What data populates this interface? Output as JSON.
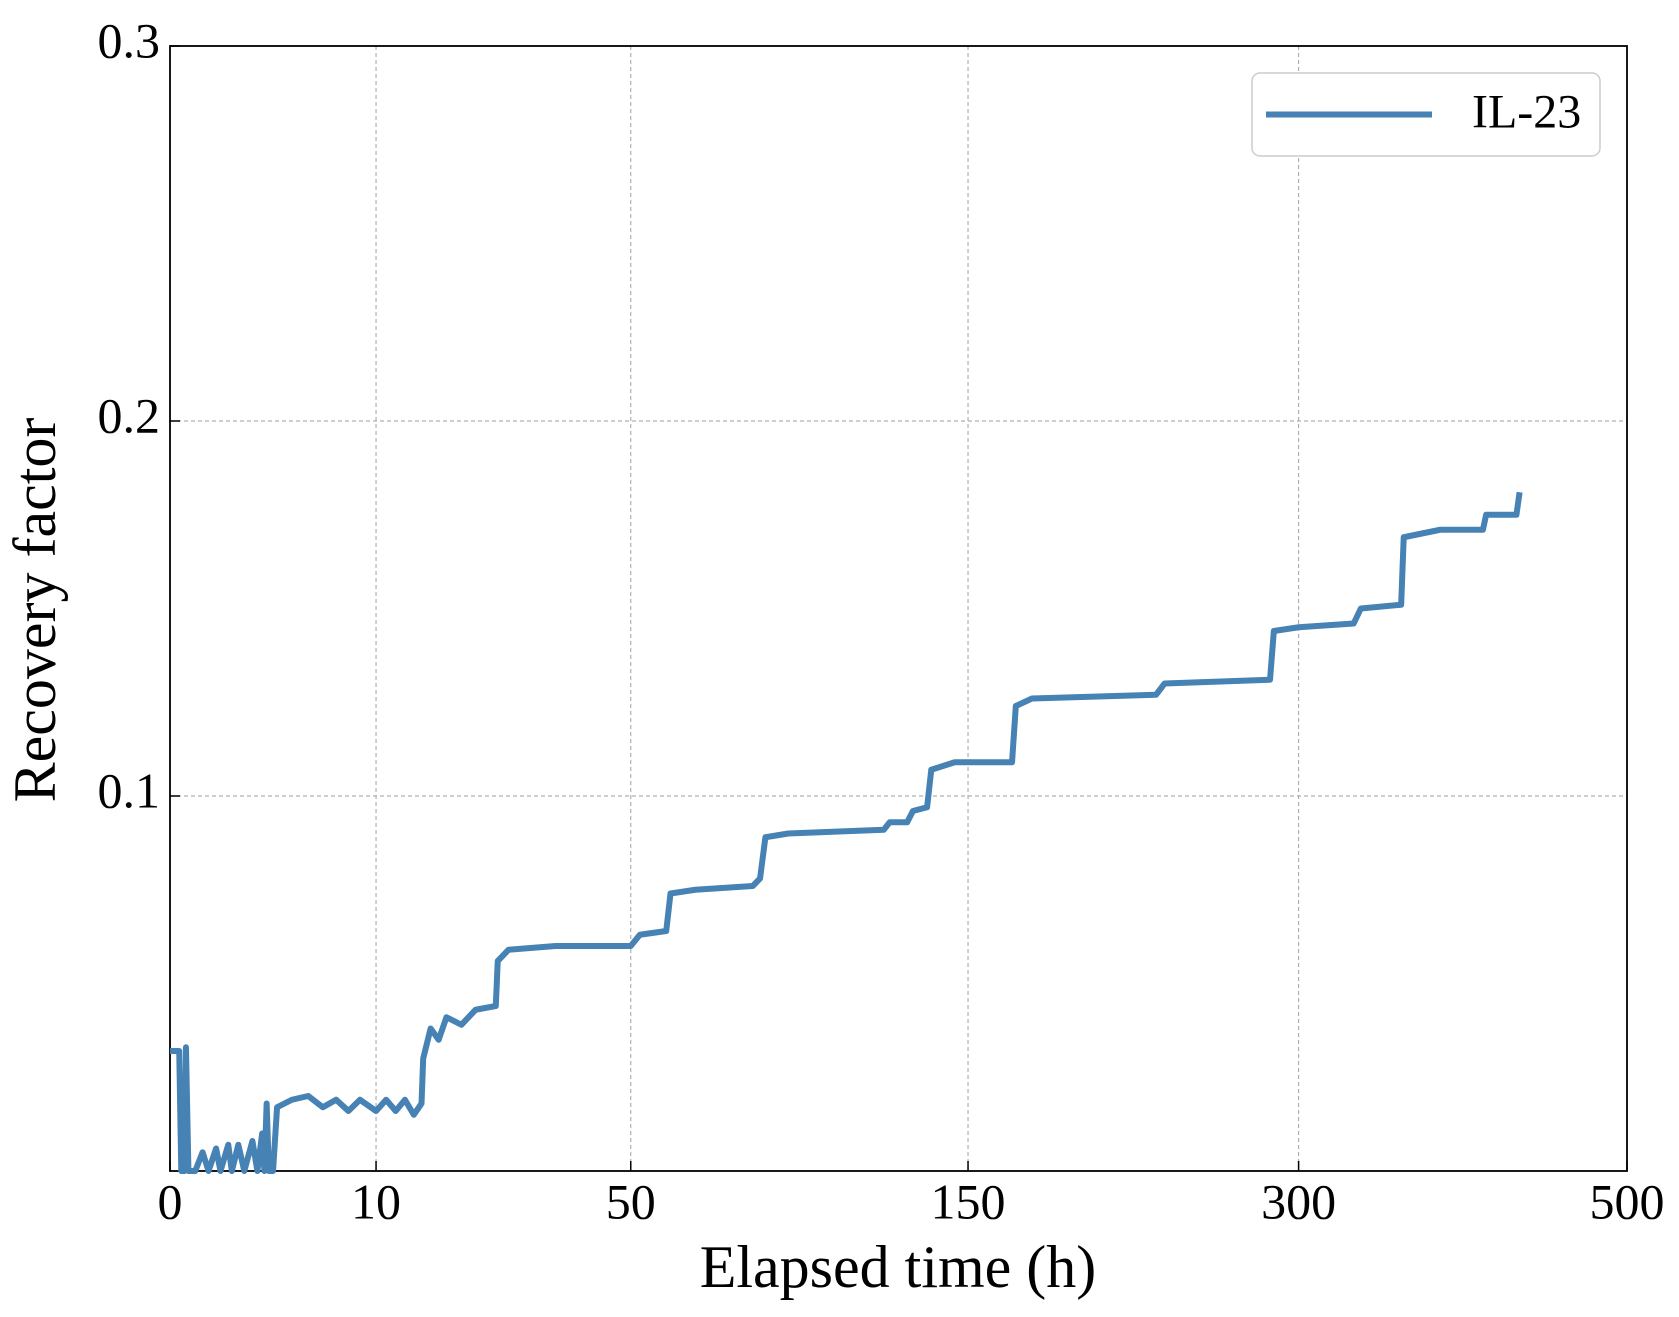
{
  "chart_data": {
    "type": "line",
    "x_label": "Elapsed time (h)",
    "y_label": "Recovery factor",
    "xscale": "sqrt",
    "xlim": [
      0,
      500
    ],
    "xticks": [
      0,
      10,
      50,
      150,
      300,
      500
    ],
    "ylim": [
      0,
      0.3
    ],
    "yticks": [
      0.1,
      0.2,
      0.3
    ],
    "grid": true,
    "legend": "upper right",
    "x": [
      0,
      0.02,
      0.03,
      0.05,
      0.06,
      0.08,
      0.15,
      0.25,
      0.35,
      0.5,
      0.6,
      0.8,
      0.9,
      1.1,
      1.3,
      1.6,
      1.8,
      2.0,
      2.1,
      2.2,
      2.3,
      2.5,
      2.7,
      3.5,
      4.5,
      5.5,
      6.5,
      7.5,
      8.5,
      10,
      11,
      12,
      13,
      14,
      14.9,
      15.1,
      16,
      17,
      18,
      20,
      22,
      25,
      25.3,
      27,
      35,
      50,
      52,
      58,
      59,
      65,
      80,
      82,
      83.5,
      90,
      120,
      122,
      128,
      130,
      135,
      136.5,
      145,
      167,
      168.5,
      175,
      229,
      233,
      285,
      287,
      300,
      330,
      334,
      357,
      358.5,
      380,
      406,
      408,
      427,
      429
    ],
    "series": [
      {
        "name": "IL-23",
        "color": "#4682b4",
        "values": [
          0.032,
          0.032,
          0.0,
          0.0,
          0.033,
          0.0,
          0.0,
          0.005,
          0.0,
          0.006,
          0.0,
          0.007,
          0.0,
          0.007,
          0.0,
          0.008,
          0.0,
          0.01,
          0.0,
          0.018,
          0.0,
          0.0,
          0.017,
          0.019,
          0.02,
          0.017,
          0.019,
          0.016,
          0.019,
          0.016,
          0.019,
          0.016,
          0.019,
          0.015,
          0.018,
          0.03,
          0.038,
          0.035,
          0.041,
          0.039,
          0.043,
          0.044,
          0.056,
          0.059,
          0.06,
          0.06,
          0.063,
          0.064,
          0.074,
          0.075,
          0.076,
          0.078,
          0.089,
          0.09,
          0.091,
          0.093,
          0.093,
          0.096,
          0.097,
          0.107,
          0.109,
          0.109,
          0.124,
          0.126,
          0.127,
          0.13,
          0.131,
          0.144,
          0.145,
          0.146,
          0.15,
          0.151,
          0.169,
          0.171,
          0.171,
          0.175,
          0.175,
          0.181
        ]
      }
    ]
  }
}
